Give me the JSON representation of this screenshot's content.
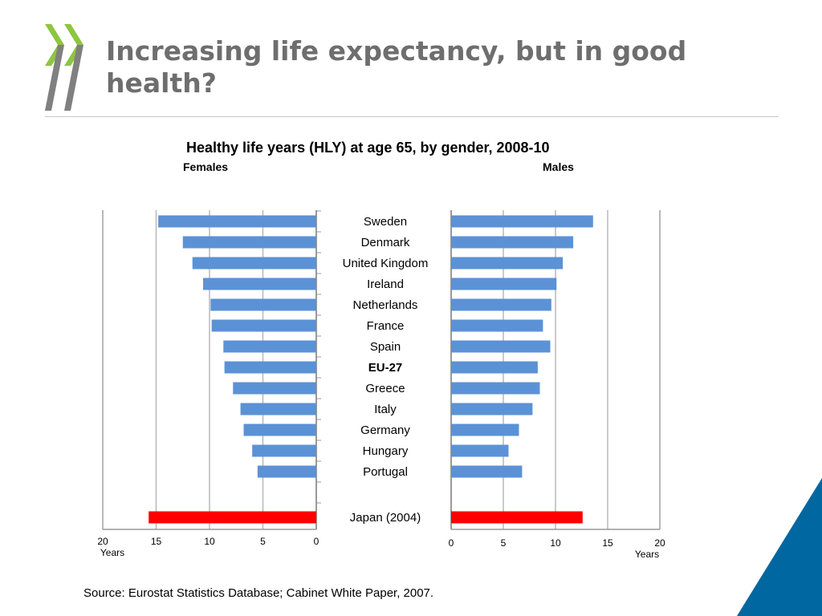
{
  "slide": {
    "title": "Increasing life expectancy, but in good health?",
    "source": "Source:  Eurostat Statistics Database; Cabinet White Paper, 2007."
  },
  "colors": {
    "bar": "#5b92d6",
    "highlight": "#ff0000",
    "title": "#6e6e6e",
    "logo_green": "#8dc63f",
    "logo_grey": "#808080",
    "corner": "#0067a0"
  },
  "icons": {
    "logo": "oecd-chevron-logo-icon",
    "corner": "corner-triangle-icon"
  },
  "chart_data": {
    "type": "bar",
    "orientation": "horizontal",
    "layout": "population-pyramid",
    "title": "Healthy life years (HLY) at age 65, by gender, 2008-10",
    "left_panel_label": "Females",
    "right_panel_label": "Males",
    "xlabel_left": "Years",
    "xlabel_right": "Years",
    "xlim": [
      0,
      20
    ],
    "xticks": [
      "0",
      "5",
      "10",
      "15",
      "20"
    ],
    "categories": [
      "Sweden",
      "Denmark",
      "United Kingdom",
      "Ireland",
      "Netherlands",
      "France",
      "Spain",
      "EU-27",
      "Greece",
      "Italy",
      "Germany",
      "Hungary",
      "Portugal",
      "Japan (2004)"
    ],
    "bold_categories": [
      "EU-27"
    ],
    "highlight_categories": [
      "Japan (2004)"
    ],
    "series": [
      {
        "name": "Females",
        "values": [
          14.8,
          12.5,
          11.6,
          10.6,
          9.9,
          9.8,
          8.7,
          8.6,
          7.8,
          7.1,
          6.8,
          6.0,
          5.5,
          15.7
        ]
      },
      {
        "name": "Males",
        "values": [
          13.6,
          11.7,
          10.7,
          10.1,
          9.6,
          8.8,
          9.5,
          8.3,
          8.5,
          7.8,
          6.5,
          5.5,
          6.8,
          12.6
        ]
      }
    ]
  }
}
